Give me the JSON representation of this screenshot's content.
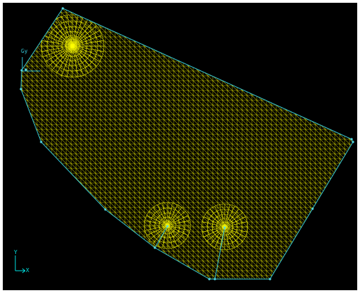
{
  "viewport": {
    "background_color": "#000000",
    "frame_color": "#ffffff",
    "mesh_color": "#ffff00",
    "boundary_color": "#33c6d6",
    "node_color": "#55d9e6"
  },
  "local_axes": {
    "x_label": "",
    "y_label": "Gy"
  },
  "global_axes": {
    "x_label": "X",
    "y_label": "Y",
    "color": "#00e0e0"
  }
}
